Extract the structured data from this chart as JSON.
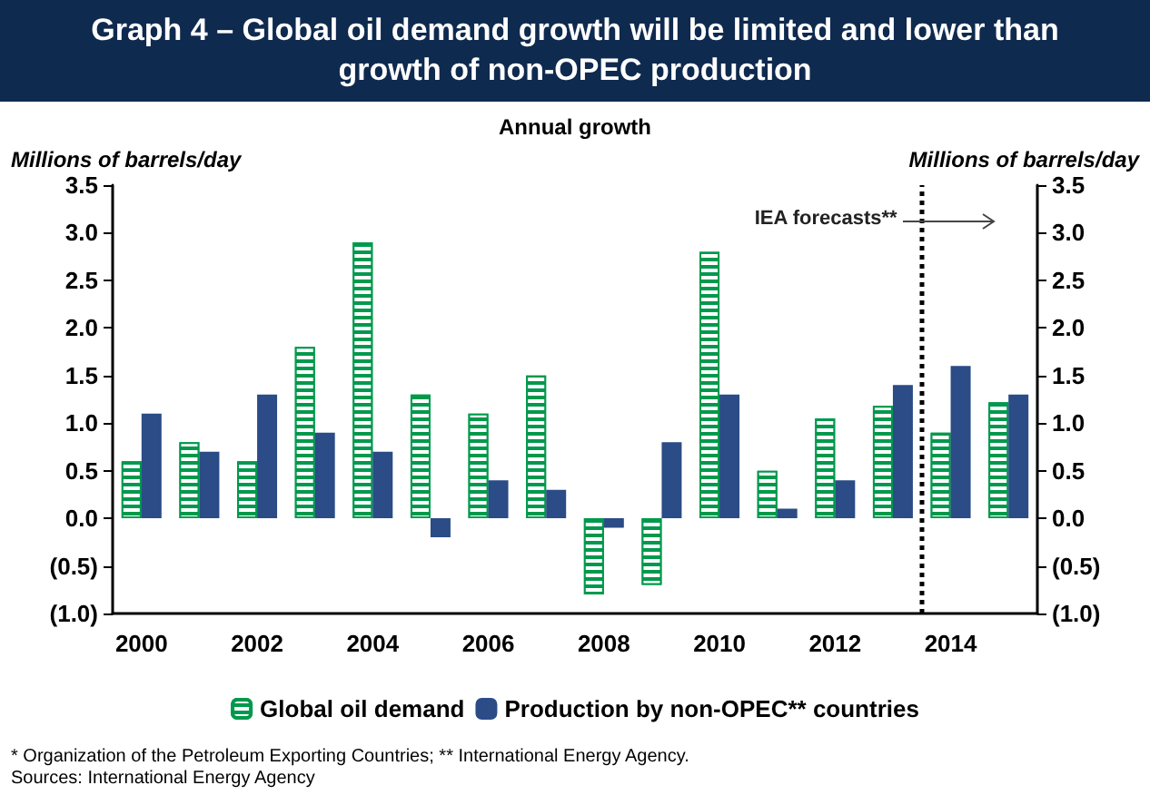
{
  "chart_data": {
    "type": "bar",
    "title": "Graph 4 – Global oil demand growth will be limited and lower than growth of non-OPEC production",
    "subtitle": "Annual growth",
    "ylabel": "Millions of barrels/day",
    "y2label": "Millions of barrels/day",
    "x": [
      2000,
      2001,
      2002,
      2003,
      2004,
      2005,
      2006,
      2007,
      2008,
      2009,
      2010,
      2011,
      2012,
      2013,
      2014,
      2015
    ],
    "xlim": [
      1999.5,
      2015.5
    ],
    "xticks": [
      2000,
      2002,
      2004,
      2006,
      2008,
      2010,
      2012,
      2014
    ],
    "series": [
      {
        "name": "Global oil demand",
        "color": "#00994c",
        "values": [
          0.6,
          0.8,
          0.6,
          1.8,
          2.9,
          1.3,
          1.1,
          1.5,
          -0.8,
          -0.7,
          2.8,
          0.5,
          1.05,
          1.18,
          0.9,
          1.22
        ]
      },
      {
        "name": "Production by non-OPEC** countries",
        "color": "#2b4c86",
        "values": [
          1.1,
          0.7,
          1.3,
          0.9,
          0.7,
          -0.2,
          0.4,
          0.3,
          -0.1,
          0.8,
          1.3,
          0.1,
          0.4,
          1.4,
          1.6,
          1.3
        ]
      }
    ],
    "ylim": [
      -1.0,
      3.5
    ],
    "yticks": [
      {
        "value": -1.0,
        "label": "(1.0)"
      },
      {
        "value": -0.5,
        "label": "(0.5)"
      },
      {
        "value": 0,
        "label": "0.0"
      },
      {
        "value": 0.5,
        "label": "0.5"
      },
      {
        "value": 1.0,
        "label": "1.0"
      },
      {
        "value": 1.5,
        "label": "1.5"
      },
      {
        "value": 2.0,
        "label": "2.0"
      },
      {
        "value": 2.5,
        "label": "2.5"
      },
      {
        "value": 3.0,
        "label": "3.0"
      },
      {
        "value": 3.5,
        "label": "3.5"
      }
    ],
    "y2lim": [
      -1.0,
      3.5
    ],
    "y2ticks": [
      {
        "value": -1.0,
        "label": "(1.0)"
      },
      {
        "value": -0.5,
        "label": "(0.5)"
      },
      {
        "value": 0,
        "label": "0.0"
      },
      {
        "value": 0.5,
        "label": "0.5"
      },
      {
        "value": 1.0,
        "label": "1.0"
      },
      {
        "value": 1.5,
        "label": "1.5"
      },
      {
        "value": 2.0,
        "label": "2.0"
      },
      {
        "value": 2.5,
        "label": "2.5"
      },
      {
        "value": 3.0,
        "label": "3.0"
      },
      {
        "value": 3.5,
        "label": "3.5"
      }
    ],
    "ref_lines": [
      {
        "axis": "x",
        "value": 2013.5,
        "label": "IEA forecasts**",
        "color": "#000000",
        "line_style": "dotted"
      }
    ],
    "annotations": [
      "* Organization of the Petroleum Exporting Countries; ** International Energy Agency.",
      "Sources: International Energy Agency"
    ],
    "grid": false,
    "legend": "bottom"
  }
}
